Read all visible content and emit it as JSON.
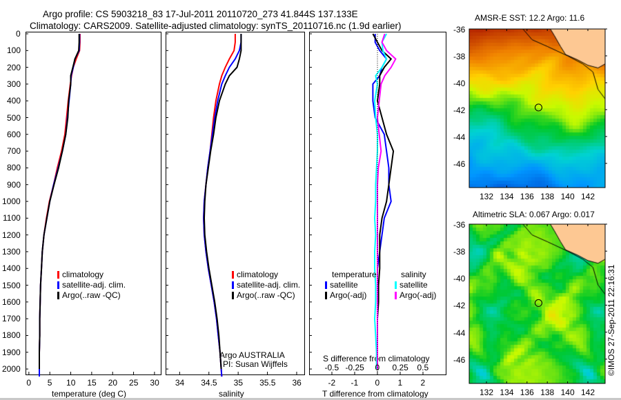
{
  "title": {
    "line1": "Argo profile: CS 5903218_83 17-Jul-2011 20110720_273 41.844S 137.133E",
    "line2": "Climatology: CARS2009. Satellite-adjusted climatology: synTS_20110716.nc (1.9d earlier)"
  },
  "colors": {
    "climatology": "#ff0000",
    "satellite": "#0000ff",
    "argo": "#000000",
    "sal_satellite": "#00ffff",
    "sal_argo": "#ff00ff",
    "land": "#fdc893"
  },
  "chart_data": [
    {
      "type": "line",
      "id": "temperature",
      "xlabel": "temperature (deg C)",
      "ylabel": "depth",
      "xlim": [
        -0.8,
        31.5
      ],
      "ylim": [
        2045,
        0
      ],
      "xticks": [
        0,
        5,
        10,
        15,
        20,
        25,
        30
      ],
      "yticks": [
        0,
        100,
        200,
        300,
        400,
        500,
        600,
        700,
        800,
        900,
        1000,
        1100,
        1200,
        1300,
        1400,
        1500,
        1600,
        1700,
        1800,
        1900,
        2000
      ],
      "legend": [
        "climatology",
        "satellite-adj. clim.",
        "Argo(..raw -QC)"
      ],
      "depth": [
        0,
        50,
        100,
        150,
        200,
        250,
        300,
        400,
        500,
        600,
        700,
        800,
        900,
        1000,
        1100,
        1200,
        1300,
        1400,
        1500,
        1600,
        1700,
        1800,
        1900,
        2000,
        2045
      ],
      "series": [
        {
          "name": "climatology",
          "values": [
            12.2,
            12.2,
            12.1,
            11.3,
            10.6,
            10.2,
            9.9,
            9.4,
            9.0,
            8.6,
            7.8,
            6.8,
            5.9,
            4.9,
            4.2,
            3.6,
            3.2,
            3.0,
            2.8,
            2.7,
            2.6,
            2.6,
            2.5,
            2.5,
            2.5
          ]
        },
        {
          "name": "satellite-adj. clim.",
          "values": [
            12.1,
            12.1,
            12.0,
            11.0,
            10.6,
            10.1,
            10.0,
            9.6,
            9.2,
            8.8,
            8.0,
            7.0,
            5.9,
            5.0,
            4.3,
            3.6,
            3.2,
            3.0,
            2.8,
            2.7,
            2.6,
            2.6,
            2.5,
            2.5,
            2.5
          ]
        },
        {
          "name": "Argo(..raw -QC)",
          "values": [
            12.0,
            12.0,
            11.9,
            11.0,
            10.5,
            10.0,
            10.0,
            9.5,
            9.3,
            8.8,
            8.0,
            7.1,
            6.0,
            5.0,
            4.3,
            3.6,
            3.2,
            3.0,
            2.8,
            2.7,
            2.6,
            2.6,
            2.5,
            2.5,
            null
          ]
        }
      ]
    },
    {
      "type": "line",
      "id": "salinity",
      "xlabel": "salinity",
      "xlim": [
        33.76,
        36.13
      ],
      "ylim": [
        2045,
        0
      ],
      "xticks": [
        34,
        34.5,
        35,
        35.5,
        36
      ],
      "legend": [
        "climatology",
        "satellite-adj. clim.",
        "Argo(..raw -QC)"
      ],
      "annotation": [
        "Argo AUSTRALIA",
        "PI: Susan Wijffels"
      ],
      "depth": [
        0,
        50,
        100,
        150,
        200,
        250,
        300,
        400,
        500,
        600,
        700,
        800,
        900,
        1000,
        1100,
        1200,
        1300,
        1400,
        1500,
        1600,
        1700,
        1800,
        1900,
        2000,
        2045
      ],
      "series": [
        {
          "name": "climatology",
          "values": [
            34.95,
            34.95,
            34.93,
            34.85,
            34.78,
            34.72,
            34.68,
            34.62,
            34.58,
            34.55,
            34.52,
            34.48,
            34.45,
            34.42,
            34.41,
            34.42,
            34.45,
            34.49,
            34.54,
            34.59,
            34.63,
            34.66,
            34.69,
            34.71,
            34.72
          ]
        },
        {
          "name": "satellite-adj. clim.",
          "values": [
            35.05,
            35.05,
            35.02,
            34.95,
            34.85,
            34.78,
            34.72,
            34.65,
            34.6,
            34.56,
            34.52,
            34.48,
            34.45,
            34.42,
            34.41,
            34.42,
            34.45,
            34.49,
            34.54,
            34.59,
            34.63,
            34.66,
            34.69,
            34.71,
            34.72
          ]
        },
        {
          "name": "Argo(..raw -QC)",
          "values": [
            35.05,
            35.05,
            35.05,
            35.02,
            34.98,
            34.85,
            34.78,
            34.68,
            34.62,
            34.58,
            34.53,
            34.49,
            34.45,
            34.43,
            34.42,
            34.43,
            34.46,
            34.5,
            34.55,
            34.6,
            34.64,
            34.67,
            34.69,
            34.71,
            null
          ]
        }
      ]
    },
    {
      "type": "line",
      "id": "difference",
      "xlabel": "T difference from climatology",
      "xlabel_top": "S difference from climatology",
      "xlim": [
        -3,
        3
      ],
      "xticks": [
        -2,
        -1,
        0,
        1,
        2
      ],
      "xticks_top": [
        "-0.5",
        "-0.25",
        "0",
        "0.25",
        "0.5"
      ],
      "legend_titles": [
        "temperature",
        "salinity"
      ],
      "legend": [
        "satellite",
        "Argo(-adj)",
        "satellite",
        "Argo(-adj)"
      ],
      "depth": [
        0,
        50,
        100,
        150,
        200,
        250,
        300,
        400,
        500,
        600,
        700,
        800,
        900,
        1000,
        1100,
        1200,
        1300,
        1400,
        1500,
        1600,
        1700,
        1800,
        1900,
        2000
      ],
      "series": [
        {
          "name": "temperature satellite",
          "values": [
            -0.1,
            -0.1,
            0.1,
            0.4,
            0.2,
            0.1,
            -0.2,
            -0.2,
            -0.1,
            0.3,
            0.4,
            0.5,
            0.5,
            0.6,
            0.3,
            0.2,
            0.1,
            0.0,
            0.0,
            0.0,
            0.0,
            0.0,
            0.0,
            0.0
          ]
        },
        {
          "name": "temperature Argo(-adj)",
          "values": [
            -0.2,
            0.0,
            0.2,
            0.6,
            0.3,
            0.1,
            0.1,
            0.0,
            0.2,
            0.4,
            0.7,
            0.6,
            0.5,
            0.4,
            0.2,
            0.1,
            0.1,
            0.1,
            0.05,
            0.05,
            0.0,
            0.0,
            0.0,
            0.0
          ]
        },
        {
          "name": "salinity satellite",
          "values": [
            0.1,
            0.05,
            0.06,
            0.1,
            0.05,
            -0.02,
            0.0,
            -0.03,
            -0.02,
            0.0,
            0.0,
            -0.01,
            -0.02,
            -0.02,
            -0.03,
            -0.02,
            -0.03,
            -0.03,
            -0.02,
            -0.02,
            -0.03,
            -0.02,
            -0.01,
            -0.01
          ]
        },
        {
          "name": "salinity Argo(-adj)",
          "values": [
            0.08,
            0.05,
            0.1,
            0.2,
            0.15,
            0.08,
            0.04,
            0.02,
            0.0,
            0.02,
            0.04,
            0.01,
            0.0,
            0.0,
            0.0,
            0.0,
            0.0,
            0.0,
            0.0,
            0.0,
            0.0,
            0.0,
            0.0,
            0.0
          ]
        }
      ]
    },
    {
      "type": "heatmap",
      "id": "sst_map",
      "title": "AMSR-E SST: 12.2 Argo: 11.6",
      "xlim": [
        130.3,
        143.7
      ],
      "ylim": [
        -47.8,
        -36
      ],
      "xticks": [
        132,
        134,
        136,
        138,
        140,
        142
      ],
      "yticks": [
        -36,
        -38,
        -40,
        -42,
        -44,
        -46
      ],
      "float_position": {
        "lon": 137.133,
        "lat": -41.844
      }
    },
    {
      "type": "heatmap",
      "id": "sla_map",
      "title": "Altimetric SLA: 0.067 Argo: 0.017",
      "xlim": [
        130.3,
        143.7
      ],
      "ylim": [
        -47.8,
        -36
      ],
      "xticks": [
        132,
        134,
        136,
        138,
        140,
        142
      ],
      "yticks": [
        -36,
        -38,
        -40,
        -42,
        -44,
        -46
      ],
      "float_position": {
        "lon": 137.133,
        "lat": -41.844
      }
    }
  ],
  "credit": "©IMOS 27-Sep-2011 22:16:31"
}
